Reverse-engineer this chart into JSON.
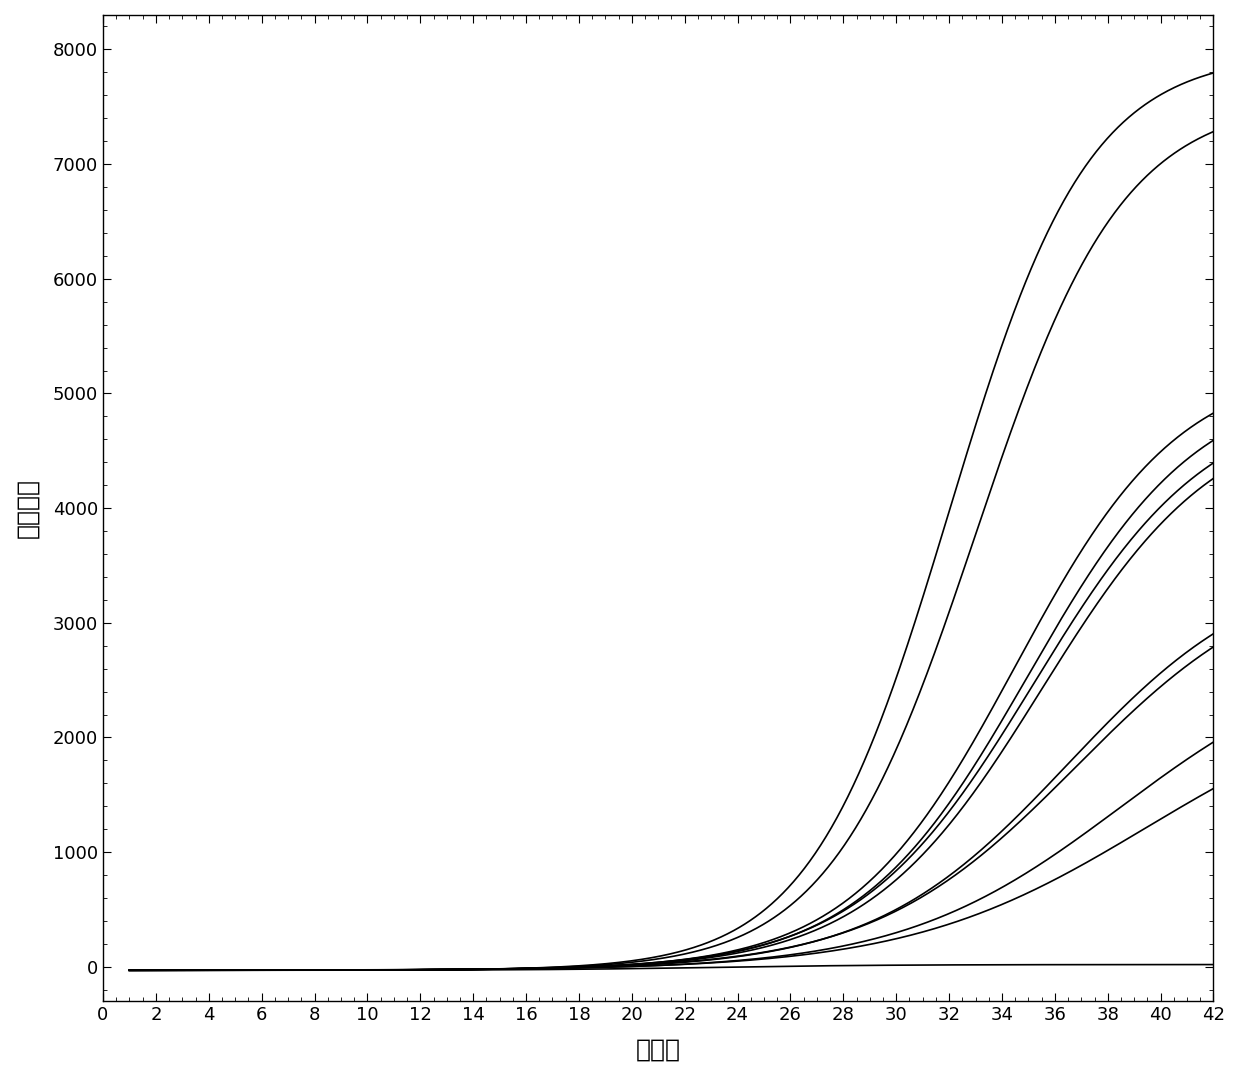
{
  "title": "",
  "xlabel": "循环数",
  "ylabel": "荧光强度",
  "xlim": [
    0,
    42
  ],
  "ylim": [
    -300,
    8300
  ],
  "xticks": [
    0,
    2,
    4,
    6,
    8,
    10,
    12,
    14,
    16,
    18,
    20,
    22,
    24,
    26,
    28,
    30,
    32,
    34,
    36,
    38,
    40,
    42
  ],
  "yticks": [
    0,
    1000,
    2000,
    3000,
    4000,
    5000,
    6000,
    7000,
    8000
  ],
  "background_color": "#ffffff",
  "line_color": "#000000",
  "curves": [
    {
      "L": 8000,
      "k": 0.38,
      "x0": 32.0,
      "baseline": -30
    },
    {
      "L": 7600,
      "k": 0.36,
      "x0": 33.0,
      "baseline": -30
    },
    {
      "L": 5300,
      "k": 0.32,
      "x0": 34.5,
      "baseline": -30
    },
    {
      "L": 5150,
      "k": 0.31,
      "x0": 35.0,
      "baseline": -30
    },
    {
      "L": 5000,
      "k": 0.3,
      "x0": 35.2,
      "baseline": -30
    },
    {
      "L": 4900,
      "k": 0.3,
      "x0": 35.5,
      "baseline": -30
    },
    {
      "L": 3600,
      "k": 0.27,
      "x0": 36.5,
      "baseline": -30
    },
    {
      "L": 3550,
      "k": 0.26,
      "x0": 36.8,
      "baseline": -30
    },
    {
      "L": 2850,
      "k": 0.24,
      "x0": 38.5,
      "baseline": -30
    },
    {
      "L": 2500,
      "k": 0.22,
      "x0": 39.5,
      "baseline": -30
    },
    {
      "L": 50,
      "k": 0.3,
      "x0": 23.0,
      "baseline": -30
    }
  ],
  "line_width": 1.2,
  "font_size_label": 18,
  "font_size_tick": 13
}
